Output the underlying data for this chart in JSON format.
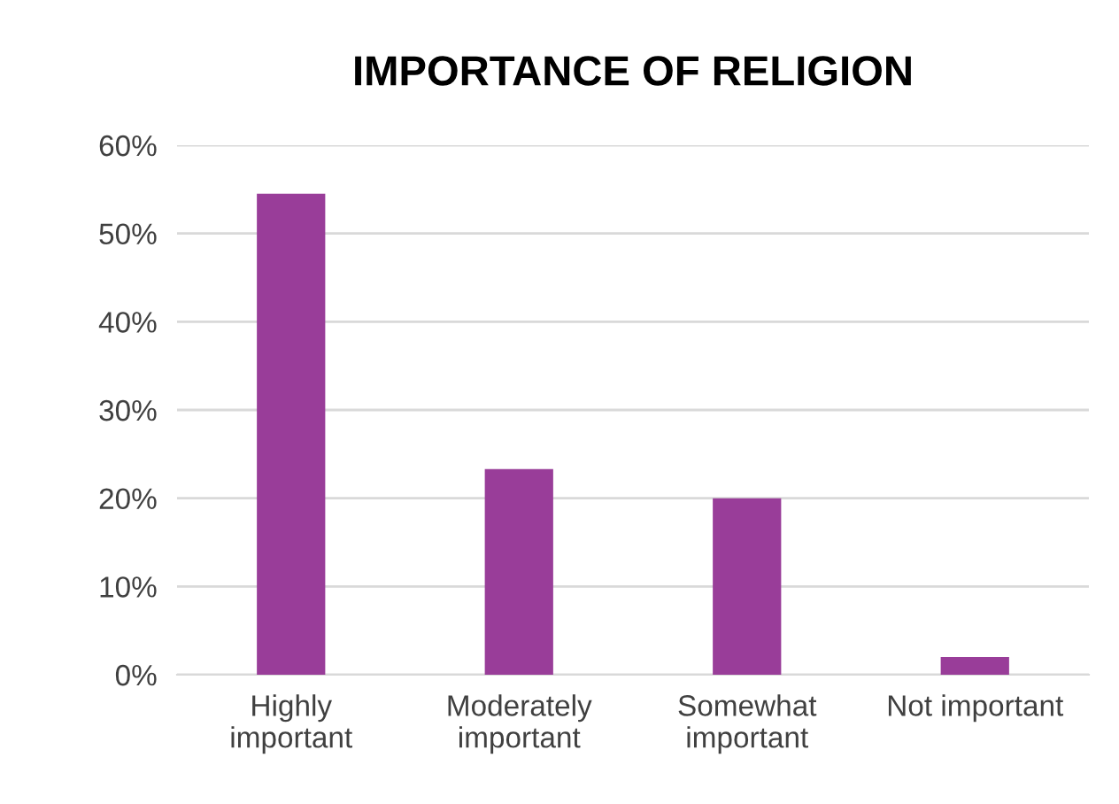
{
  "chart_data": {
    "type": "bar",
    "title": "IMPORTANCE OF RELIGION",
    "categories": [
      "Highly\nimportant",
      "Moderately\nimportant",
      "Somewhat\nimportant",
      "Not important"
    ],
    "values": [
      54.5,
      23.3,
      20,
      2
    ],
    "color": "#993d99",
    "ylim": [
      0,
      60
    ],
    "yticks": [
      {
        "value": 0,
        "label": "0%"
      },
      {
        "value": 10,
        "label": "10%"
      },
      {
        "value": 20,
        "label": "20%"
      },
      {
        "value": 30,
        "label": "30%"
      },
      {
        "value": 40,
        "label": "40%"
      },
      {
        "value": 50,
        "label": "50%"
      },
      {
        "value": 60,
        "label": "60%"
      }
    ],
    "grid": "y",
    "legend": false
  }
}
